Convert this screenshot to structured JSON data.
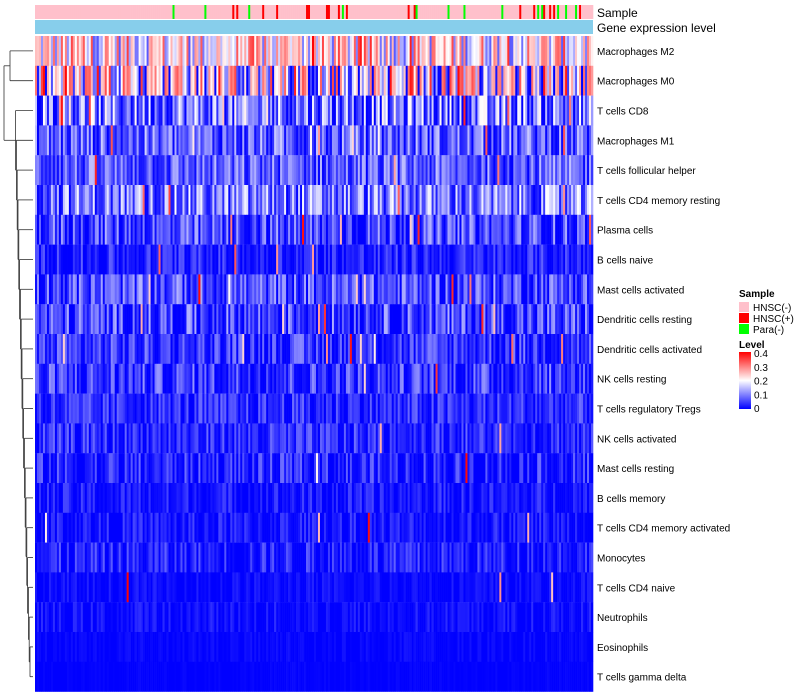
{
  "chart_data": {
    "type": "heatmap",
    "rows": [
      {
        "name": "Macrophages M2",
        "mean": 0.22,
        "spread": 0.14,
        "spike": 0.1
      },
      {
        "name": "Macrophages M0",
        "mean": 0.16,
        "spread": 0.2,
        "spike": 0.3
      },
      {
        "name": "T cells CD8",
        "mean": 0.1,
        "spread": 0.12,
        "spike": 0.04
      },
      {
        "name": "Macrophages M1",
        "mean": 0.08,
        "spread": 0.09,
        "spike": 0.02
      },
      {
        "name": "T cells follicular helper",
        "mean": 0.08,
        "spread": 0.08,
        "spike": 0.01
      },
      {
        "name": "T cells CD4 memory resting",
        "mean": 0.1,
        "spread": 0.1,
        "spike": 0.02
      },
      {
        "name": "Plasma cells",
        "mean": 0.06,
        "spread": 0.09,
        "spike": 0.02
      },
      {
        "name": "B cells naive",
        "mean": 0.03,
        "spread": 0.06,
        "spike": 0.01
      },
      {
        "name": "Mast cells activated",
        "mean": 0.07,
        "spread": 0.08,
        "spike": 0.02
      },
      {
        "name": "Dendritic cells resting",
        "mean": 0.06,
        "spread": 0.09,
        "spike": 0.03
      },
      {
        "name": "Dendritic cells activated",
        "mean": 0.05,
        "spread": 0.07,
        "spike": 0.02
      },
      {
        "name": "NK cells resting",
        "mean": 0.05,
        "spread": 0.08,
        "spike": 0.01
      },
      {
        "name": "T cells regulatory  Tregs",
        "mean": 0.04,
        "spread": 0.06,
        "spike": 0.01
      },
      {
        "name": "NK cells activated",
        "mean": 0.04,
        "spread": 0.06,
        "spike": 0.01
      },
      {
        "name": "Mast cells resting",
        "mean": 0.03,
        "spread": 0.07,
        "spike": 0.01
      },
      {
        "name": "B cells memory",
        "mean": 0.02,
        "spread": 0.05,
        "spike": 0.01
      },
      {
        "name": "T cells CD4 memory activated",
        "mean": 0.02,
        "spread": 0.05,
        "spike": 0.01
      },
      {
        "name": "Monocytes",
        "mean": 0.03,
        "spread": 0.06,
        "spike": 0.0
      },
      {
        "name": "T cells CD4 naive",
        "mean": 0.01,
        "spread": 0.03,
        "spike": 0.01
      },
      {
        "name": "Neutrophils",
        "mean": 0.01,
        "spread": 0.04,
        "spike": 0.0
      },
      {
        "name": "Eosinophils",
        "mean": 0.005,
        "spread": 0.02,
        "spike": 0.0
      },
      {
        "name": "T cells gamma delta",
        "mean": 0.002,
        "spread": 0.01,
        "spike": 0.0
      }
    ],
    "annotations": [
      {
        "name": "Sample"
      },
      {
        "name": "Gene expression level"
      }
    ],
    "legend": {
      "sample_title": "Sample",
      "sample_items": [
        {
          "label": "HNSC(-)",
          "color": "#ffc0cb"
        },
        {
          "label": "HNSC(+)",
          "color": "#ff0000"
        },
        {
          "label": "Para(-)",
          "color": "#00ff00"
        }
      ],
      "level_title": "Level",
      "level_ticks": [
        "0.4",
        "0.3",
        "0.2",
        "0.1",
        "0"
      ],
      "level_range": [
        0,
        0.4
      ]
    },
    "color_scale": {
      "low": "#0000ff",
      "mid": "#ffffff",
      "high": "#ff0000",
      "mid_value": 0.2
    },
    "expression_color": "#87ceeb"
  }
}
